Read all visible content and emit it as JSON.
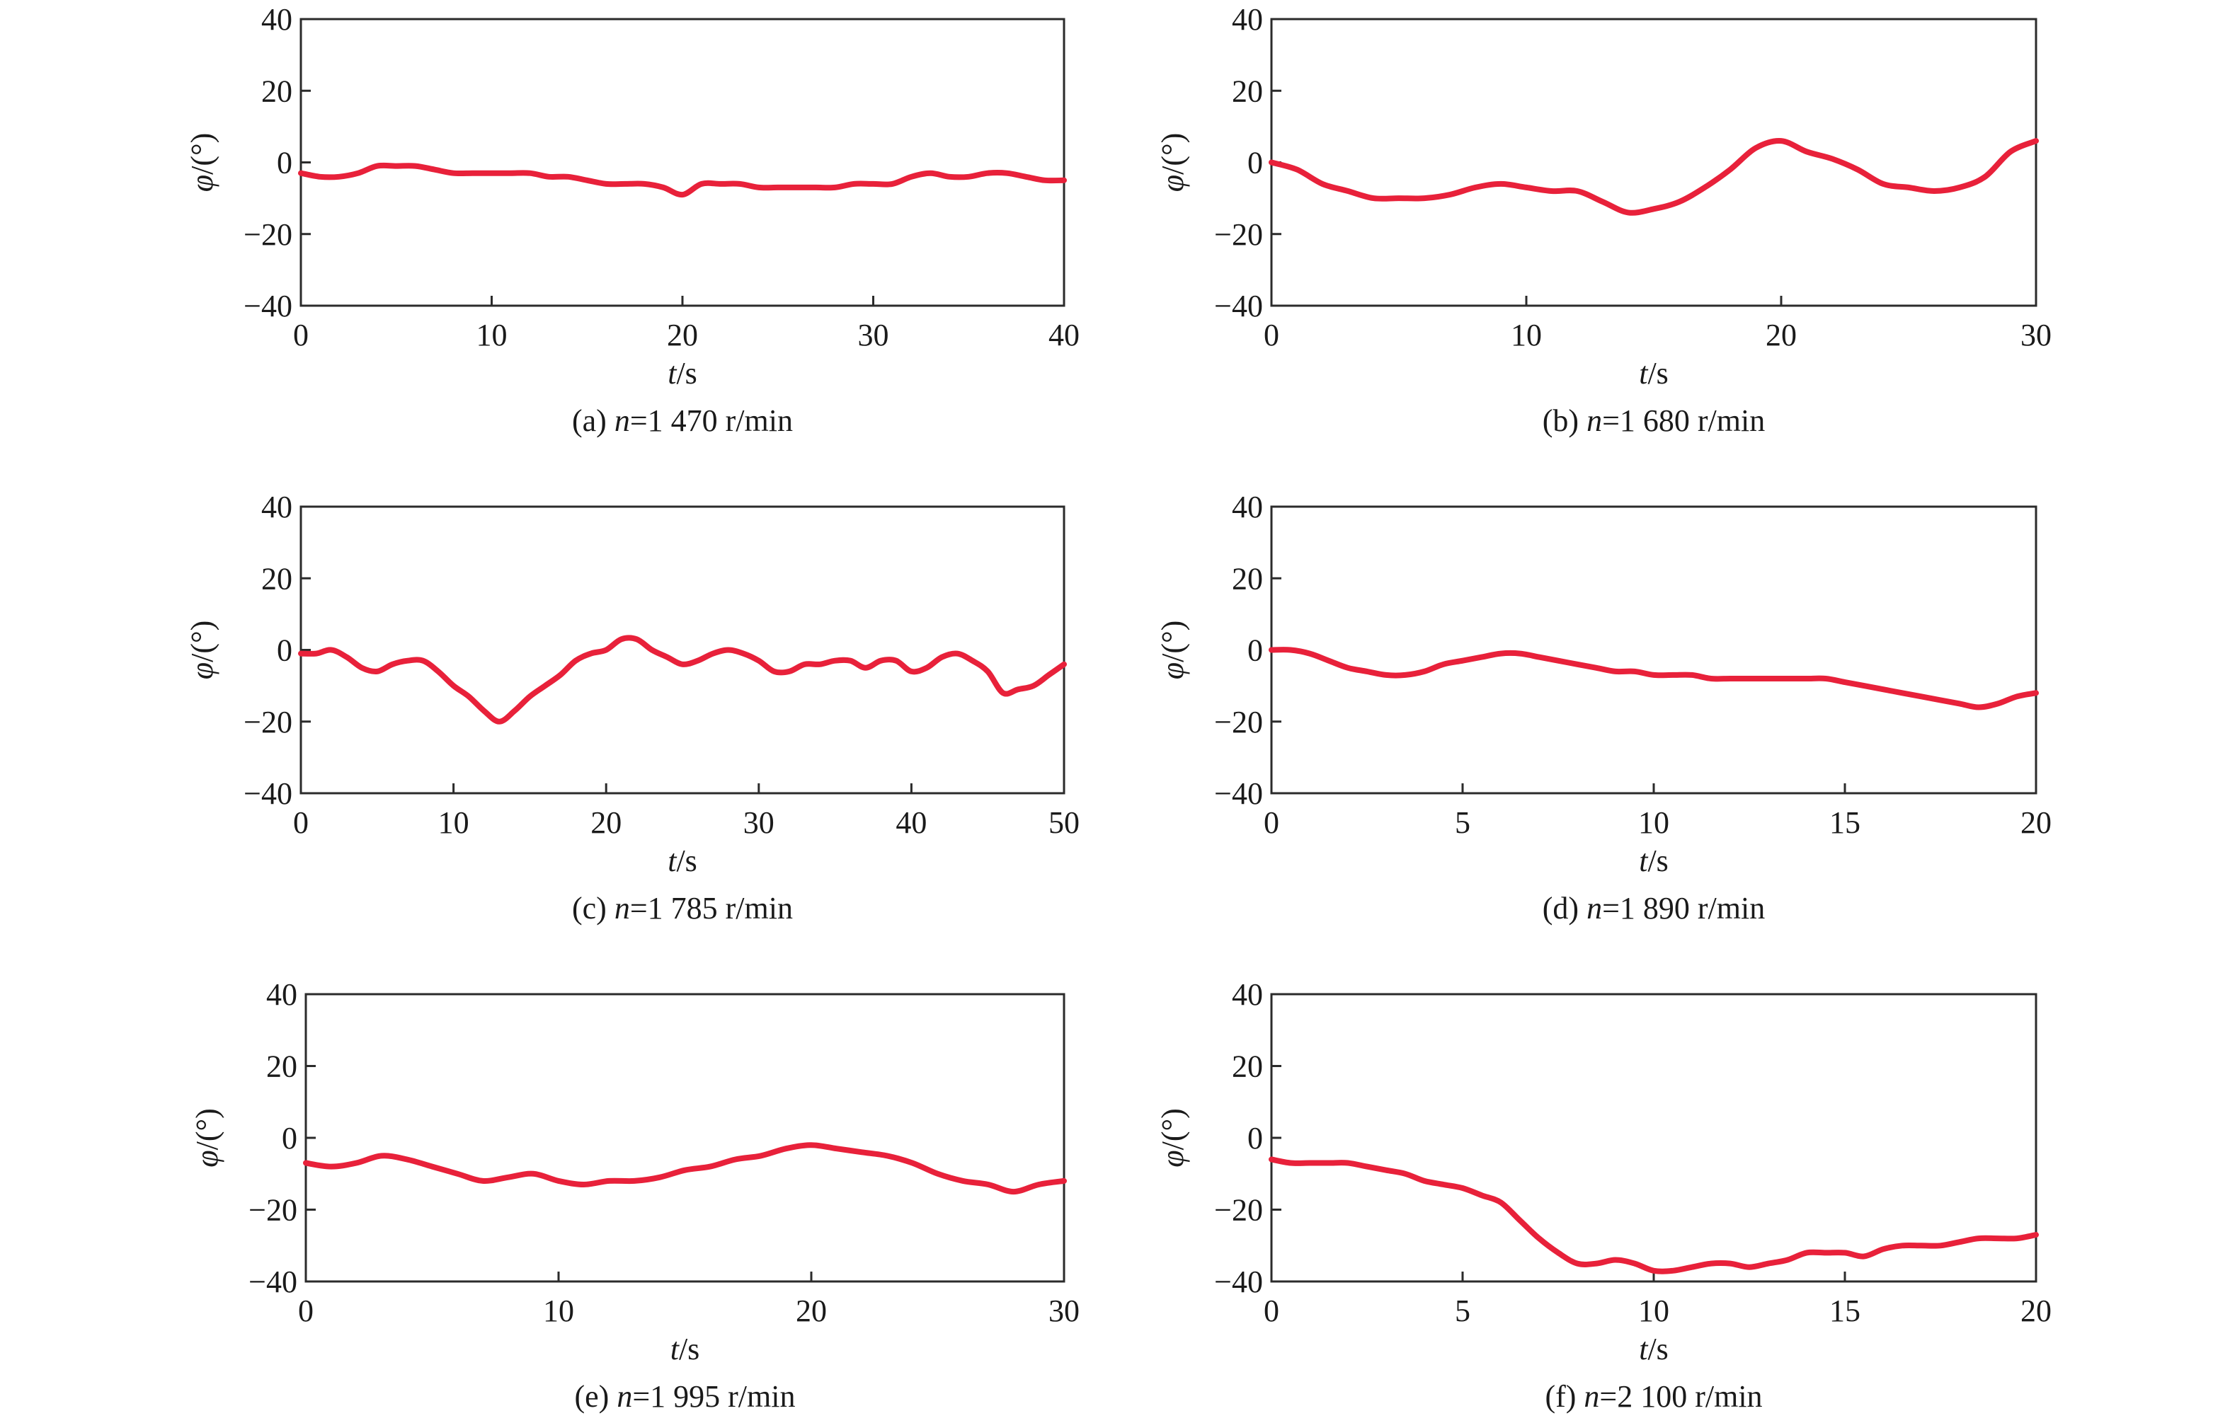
{
  "line_color": "#e8213a",
  "chart_data": [
    {
      "type": "line",
      "caption": "(a) n=1 470 r/min",
      "caption_prefix": "(a) ",
      "caption_var": "n",
      "caption_rest": "=1 470 r/min",
      "xlabel_var": "t",
      "xlabel_unit": "/s",
      "ylabel_var": "φ",
      "ylabel_unit": "/(°)",
      "xlim": [
        0,
        40
      ],
      "ylim": [
        -40,
        40
      ],
      "xticks": [
        0,
        10,
        20,
        30,
        40
      ],
      "yticks": [
        40,
        20,
        0,
        -20,
        -40
      ],
      "x": [
        0,
        1,
        2,
        3,
        4,
        5,
        6,
        7,
        8,
        9,
        10,
        11,
        12,
        13,
        14,
        15,
        16,
        17,
        18,
        19,
        20,
        21,
        22,
        23,
        24,
        25,
        26,
        27,
        28,
        29,
        30,
        31,
        32,
        33,
        34,
        35,
        36,
        37,
        38,
        39,
        40
      ],
      "y": [
        -3,
        -4,
        -4,
        -3,
        -1,
        -1,
        -1,
        -2,
        -3,
        -3,
        -3,
        -3,
        -3,
        -4,
        -4,
        -5,
        -6,
        -6,
        -6,
        -7,
        -9,
        -6,
        -6,
        -6,
        -7,
        -7,
        -7,
        -7,
        -7,
        -6,
        -6,
        -6,
        -4,
        -3,
        -4,
        -4,
        -3,
        -3,
        -4,
        -5,
        -5
      ]
    },
    {
      "type": "line",
      "caption": "(b) n=1 680 r/min",
      "caption_prefix": "(b) ",
      "caption_var": "n",
      "caption_rest": "=1 680 r/min",
      "xlabel_var": "t",
      "xlabel_unit": "/s",
      "ylabel_var": "φ",
      "ylabel_unit": "/(°)",
      "xlim": [
        0,
        30
      ],
      "ylim": [
        -40,
        40
      ],
      "xticks": [
        0,
        10,
        20,
        30
      ],
      "yticks": [
        40,
        20,
        0,
        -20,
        -40
      ],
      "x": [
        0,
        1,
        2,
        3,
        4,
        5,
        6,
        7,
        8,
        9,
        10,
        11,
        12,
        13,
        14,
        15,
        16,
        17,
        18,
        19,
        20,
        21,
        22,
        23,
        24,
        25,
        26,
        27,
        28,
        29,
        30
      ],
      "y": [
        0,
        -2,
        -6,
        -8,
        -10,
        -10,
        -10,
        -9,
        -7,
        -6,
        -7,
        -8,
        -8,
        -11,
        -14,
        -13,
        -11,
        -7,
        -2,
        4,
        6,
        3,
        1,
        -2,
        -6,
        -7,
        -8,
        -7,
        -4,
        3,
        6
      ]
    },
    {
      "type": "line",
      "caption": "(c) n=1 785 r/min",
      "caption_prefix": "(c) ",
      "caption_var": "n",
      "caption_rest": "=1 785 r/min",
      "xlabel_var": "t",
      "xlabel_unit": "/s",
      "ylabel_var": "φ",
      "ylabel_unit": "/(°)",
      "xlim": [
        0,
        50
      ],
      "ylim": [
        -40,
        40
      ],
      "xticks": [
        0,
        10,
        20,
        30,
        40,
        50
      ],
      "yticks": [
        40,
        20,
        0,
        -20,
        -40
      ],
      "x": [
        0,
        1,
        2,
        3,
        4,
        5,
        6,
        7,
        8,
        9,
        10,
        11,
        12,
        13,
        14,
        15,
        16,
        17,
        18,
        19,
        20,
        21,
        22,
        23,
        24,
        25,
        26,
        27,
        28,
        29,
        30,
        31,
        32,
        33,
        34,
        35,
        36,
        37,
        38,
        39,
        40,
        41,
        42,
        43,
        44,
        45,
        46,
        47,
        48,
        49,
        50
      ],
      "y": [
        -1,
        -1,
        0,
        -2,
        -5,
        -6,
        -4,
        -3,
        -3,
        -6,
        -10,
        -13,
        -17,
        -20,
        -17,
        -13,
        -10,
        -7,
        -3,
        -1,
        0,
        3,
        3,
        0,
        -2,
        -4,
        -3,
        -1,
        0,
        -1,
        -3,
        -6,
        -6,
        -4,
        -4,
        -3,
        -3,
        -5,
        -3,
        -3,
        -6,
        -5,
        -2,
        -1,
        -3,
        -6,
        -12,
        -11,
        -10,
        -7,
        -4
      ]
    },
    {
      "type": "line",
      "caption": "(d) n=1 890 r/min",
      "caption_prefix": "(d) ",
      "caption_var": "n",
      "caption_rest": "=1 890 r/min",
      "xlabel_var": "t",
      "xlabel_unit": "/s",
      "ylabel_var": "φ",
      "ylabel_unit": "/(°)",
      "xlim": [
        0,
        20
      ],
      "ylim": [
        -40,
        40
      ],
      "xticks": [
        0,
        5,
        10,
        15,
        20
      ],
      "yticks": [
        40,
        20,
        0,
        -20,
        -40
      ],
      "x": [
        0,
        0.5,
        1,
        1.5,
        2,
        2.5,
        3,
        3.5,
        4,
        4.5,
        5,
        5.5,
        6,
        6.5,
        7,
        7.5,
        8,
        8.5,
        9,
        9.5,
        10,
        10.5,
        11,
        11.5,
        12,
        12.5,
        13,
        13.5,
        14,
        14.5,
        15,
        15.5,
        16,
        16.5,
        17,
        17.5,
        18,
        18.5,
        19,
        19.5,
        20
      ],
      "y": [
        0,
        0,
        -1,
        -3,
        -5,
        -6,
        -7,
        -7,
        -6,
        -4,
        -3,
        -2,
        -1,
        -1,
        -2,
        -3,
        -4,
        -5,
        -6,
        -6,
        -7,
        -7,
        -7,
        -8,
        -8,
        -8,
        -8,
        -8,
        -8,
        -8,
        -9,
        -10,
        -11,
        -12,
        -13,
        -14,
        -15,
        -16,
        -15,
        -13,
        -12
      ]
    },
    {
      "type": "line",
      "caption": "(e) n=1 995 r/min",
      "caption_prefix": "(e) ",
      "caption_var": "n",
      "caption_rest": "=1 995 r/min",
      "xlabel_var": "t",
      "xlabel_unit": "/s",
      "ylabel_var": "φ",
      "ylabel_unit": "/(°)",
      "xlim": [
        0,
        30
      ],
      "ylim": [
        -40,
        40
      ],
      "xticks": [
        0,
        10,
        20,
        30
      ],
      "yticks": [
        40,
        20,
        0,
        -20,
        -40
      ],
      "x": [
        0,
        1,
        2,
        3,
        4,
        5,
        6,
        7,
        8,
        9,
        10,
        11,
        12,
        13,
        14,
        15,
        16,
        17,
        18,
        19,
        20,
        21,
        22,
        23,
        24,
        25,
        26,
        27,
        28,
        29,
        30
      ],
      "y": [
        -7,
        -8,
        -7,
        -5,
        -6,
        -8,
        -10,
        -12,
        -11,
        -10,
        -12,
        -13,
        -12,
        -12,
        -11,
        -9,
        -8,
        -6,
        -5,
        -3,
        -2,
        -3,
        -4,
        -5,
        -7,
        -10,
        -12,
        -13,
        -15,
        -13,
        -12
      ]
    },
    {
      "type": "line",
      "caption": "(f) n=2 100 r/min",
      "caption_prefix": "(f) ",
      "caption_var": "n",
      "caption_rest": "=2 100 r/min",
      "xlabel_var": "t",
      "xlabel_unit": "/s",
      "ylabel_var": "φ",
      "ylabel_unit": "/(°)",
      "xlim": [
        0,
        20
      ],
      "ylim": [
        -40,
        40
      ],
      "xticks": [
        0,
        5,
        10,
        15,
        20
      ],
      "yticks": [
        40,
        20,
        0,
        -20,
        -40
      ],
      "x": [
        0,
        0.5,
        1,
        1.5,
        2,
        2.5,
        3,
        3.5,
        4,
        4.5,
        5,
        5.5,
        6,
        6.5,
        7,
        7.5,
        8,
        8.5,
        9,
        9.5,
        10,
        10.5,
        11,
        11.5,
        12,
        12.5,
        13,
        13.5,
        14,
        14.5,
        15,
        15.5,
        16,
        16.5,
        17,
        17.5,
        18,
        18.5,
        19,
        19.5,
        20
      ],
      "y": [
        -6,
        -7,
        -7,
        -7,
        -7,
        -8,
        -9,
        -10,
        -12,
        -13,
        -14,
        -16,
        -18,
        -23,
        -28,
        -32,
        -35,
        -35,
        -34,
        -35,
        -37,
        -37,
        -36,
        -35,
        -35,
        -36,
        -35,
        -34,
        -32,
        -32,
        -32,
        -33,
        -31,
        -30,
        -30,
        -30,
        -29,
        -28,
        -28,
        -28,
        -27
      ]
    }
  ]
}
